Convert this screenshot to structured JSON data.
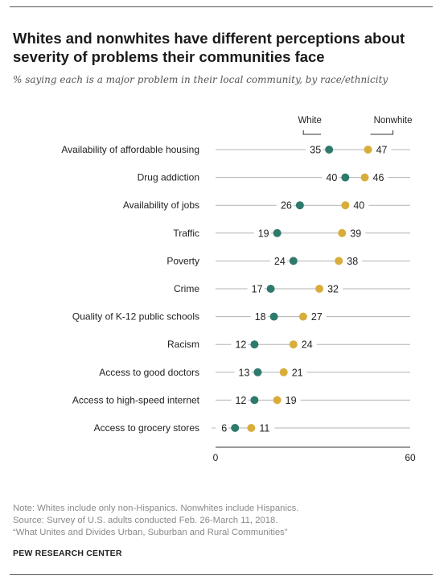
{
  "title": "Whites and nonwhites have different perceptions about severity of problems their communities face",
  "subtitle": "% saying each is a major problem in their local community, by race/ethnicity",
  "colors": {
    "white": "#2e7a6c",
    "nonwhite": "#d9ad3b",
    "line": "#b3b3b3",
    "text": "#222222"
  },
  "chart_data": {
    "type": "scatter",
    "subtype": "dot-plot",
    "categories": [
      "Availability of affordable housing",
      "Drug addiction",
      "Availability of jobs",
      "Traffic",
      "Poverty",
      "Crime",
      "Quality of K-12 public schools",
      "Racism",
      "Access to good doctors",
      "Access to high-speed internet",
      "Access to grocery stores"
    ],
    "series": [
      {
        "name": "White",
        "values": [
          35,
          40,
          26,
          19,
          24,
          17,
          18,
          12,
          13,
          12,
          6
        ]
      },
      {
        "name": "Nonwhite",
        "values": [
          47,
          46,
          40,
          39,
          38,
          32,
          27,
          24,
          21,
          19,
          11
        ]
      }
    ],
    "xlim": [
      0,
      60
    ],
    "xticks": [
      "0",
      "60"
    ],
    "legend_position": "top"
  },
  "notes": [
    "Note: Whites include only non-Hispanics. Nonwhites include Hispanics.",
    "Source: Survey of U.S. adults conducted Feb. 26-March 11, 2018.",
    "“What Unites and Divides Urban, Suburban and Rural Communities”"
  ],
  "credit": "PEW RESEARCH CENTER"
}
